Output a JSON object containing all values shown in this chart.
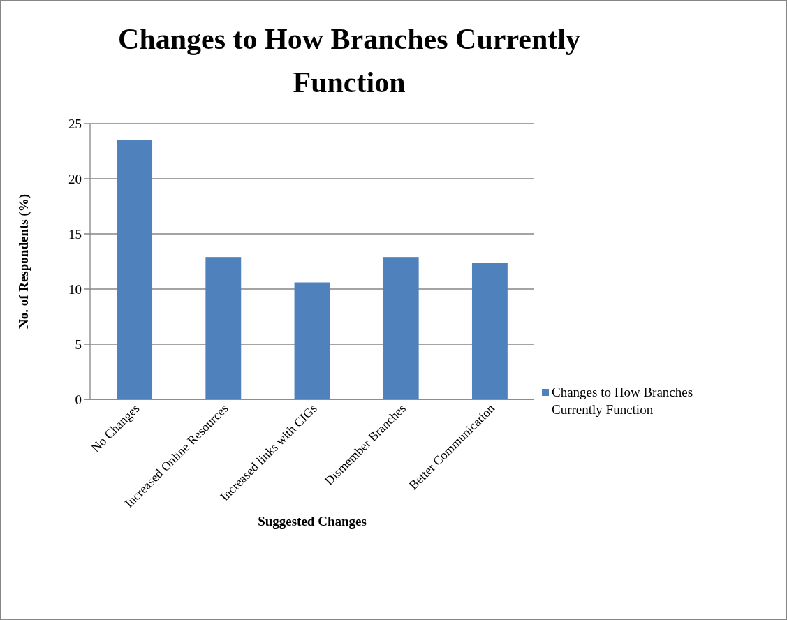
{
  "chart_data": {
    "type": "bar",
    "title": "Changes to How Branches Currently Function",
    "xlabel": "Suggested Changes",
    "ylabel": "No. of Respondents (%)",
    "categories": [
      "No Changes",
      "Increased Online Resources",
      "Increased links with CIGs",
      "Dismember Branches",
      "Better Communication"
    ],
    "series": [
      {
        "name": "Changes to How Branches Currently Function",
        "color": "#4f81bd",
        "values": [
          23.5,
          12.9,
          10.6,
          12.9,
          12.4
        ]
      }
    ],
    "ylim": [
      0,
      25
    ],
    "yticks": [
      0,
      5,
      10,
      15,
      20,
      25
    ],
    "grid": "y",
    "legend": "right"
  }
}
